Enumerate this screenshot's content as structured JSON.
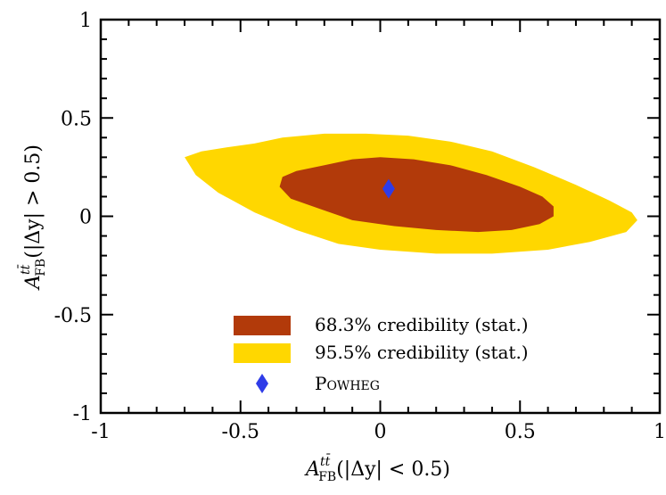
{
  "chart_data": {
    "type": "contour",
    "xlabel": {
      "symbol": "A",
      "sup": "tt̄",
      "sub": "FB",
      "expr": "(|Δy| < 0.5)"
    },
    "ylabel": {
      "symbol": "A",
      "sup": "tt̄",
      "sub": "FB",
      "expr": "(|Δy| > 0.5)"
    },
    "xlim": [
      -1,
      1
    ],
    "ylim": [
      -1,
      1
    ],
    "xticks": [
      -1,
      -0.5,
      0,
      0.5,
      1
    ],
    "yticks": [
      -1,
      -0.5,
      0,
      0.5,
      1
    ],
    "xtick_labels": [
      "-1",
      "-0.5",
      "0",
      "0.5",
      "1"
    ],
    "ytick_labels": [
      "-1",
      "-0.5",
      "0",
      "0.5",
      "1"
    ],
    "grid": false,
    "legend_position": "bottom-center",
    "regions": [
      {
        "name": "95.5% credibility (stat.)",
        "color": "#FFD700",
        "boundary": [
          [
            -0.7,
            0.3
          ],
          [
            -0.64,
            0.33
          ],
          [
            -0.55,
            0.35
          ],
          [
            -0.45,
            0.37
          ],
          [
            -0.35,
            0.4
          ],
          [
            -0.2,
            0.42
          ],
          [
            -0.05,
            0.42
          ],
          [
            0.1,
            0.41
          ],
          [
            0.25,
            0.38
          ],
          [
            0.4,
            0.33
          ],
          [
            0.55,
            0.25
          ],
          [
            0.7,
            0.16
          ],
          [
            0.82,
            0.08
          ],
          [
            0.9,
            0.02
          ],
          [
            0.92,
            -0.02
          ],
          [
            0.88,
            -0.08
          ],
          [
            0.75,
            -0.13
          ],
          [
            0.6,
            -0.17
          ],
          [
            0.4,
            -0.19
          ],
          [
            0.2,
            -0.19
          ],
          [
            0.0,
            -0.17
          ],
          [
            -0.15,
            -0.14
          ],
          [
            -0.3,
            -0.07
          ],
          [
            -0.45,
            0.02
          ],
          [
            -0.58,
            0.12
          ],
          [
            -0.66,
            0.21
          ]
        ]
      },
      {
        "name": "68.3% credibility (stat.)",
        "color": "#B23A0A",
        "boundary": [
          [
            -0.36,
            0.15
          ],
          [
            -0.35,
            0.2
          ],
          [
            -0.3,
            0.23
          ],
          [
            -0.2,
            0.26
          ],
          [
            -0.1,
            0.29
          ],
          [
            0.0,
            0.3
          ],
          [
            0.12,
            0.29
          ],
          [
            0.25,
            0.26
          ],
          [
            0.38,
            0.21
          ],
          [
            0.5,
            0.15
          ],
          [
            0.58,
            0.1
          ],
          [
            0.62,
            0.05
          ],
          [
            0.62,
            0.0
          ],
          [
            0.57,
            -0.04
          ],
          [
            0.47,
            -0.07
          ],
          [
            0.35,
            -0.08
          ],
          [
            0.2,
            -0.07
          ],
          [
            0.05,
            -0.05
          ],
          [
            -0.1,
            -0.02
          ],
          [
            -0.22,
            0.04
          ],
          [
            -0.32,
            0.09
          ]
        ]
      }
    ],
    "points": [
      {
        "name": "Powheg",
        "x": 0.03,
        "y": 0.14,
        "color": "#2F3CE8",
        "marker": "diamond"
      }
    ],
    "legend": [
      {
        "label": "68.3% credibility (stat.)",
        "style": "box",
        "color": "#B23A0A"
      },
      {
        "label": "95.5% credibility (stat.)",
        "style": "box",
        "color": "#FFD700"
      },
      {
        "label": "Powheg",
        "style": "diamond",
        "color": "#2F3CE8",
        "smallcaps": true
      }
    ]
  }
}
